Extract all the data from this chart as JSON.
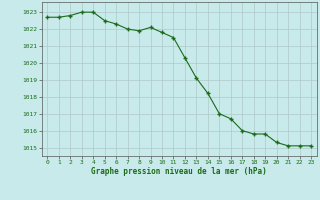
{
  "x": [
    0,
    1,
    2,
    3,
    4,
    5,
    6,
    7,
    8,
    9,
    10,
    11,
    12,
    13,
    14,
    15,
    16,
    17,
    18,
    19,
    20,
    21,
    22,
    23
  ],
  "y": [
    1022.7,
    1022.7,
    1022.8,
    1023.0,
    1023.0,
    1022.5,
    1022.3,
    1022.0,
    1021.9,
    1022.1,
    1021.8,
    1021.5,
    1020.3,
    1019.1,
    1018.2,
    1017.0,
    1016.7,
    1016.0,
    1015.8,
    1015.8,
    1015.3,
    1015.1,
    1015.1,
    1015.1
  ],
  "line_color": "#1a6b1a",
  "marker_color": "#1a6b1a",
  "bg_color": "#c8eaea",
  "grid_color": "#b0c8c8",
  "xlabel": "Graphe pression niveau de la mer (hPa)",
  "xlabel_color": "#1a6b1a",
  "tick_color": "#1a6b1a",
  "ylabel_ticks": [
    1015,
    1016,
    1017,
    1018,
    1019,
    1020,
    1021,
    1022,
    1023
  ],
  "ylim": [
    1014.5,
    1023.6
  ],
  "xlim": [
    -0.5,
    23.5
  ],
  "figsize": [
    3.2,
    2.0
  ],
  "dpi": 100
}
